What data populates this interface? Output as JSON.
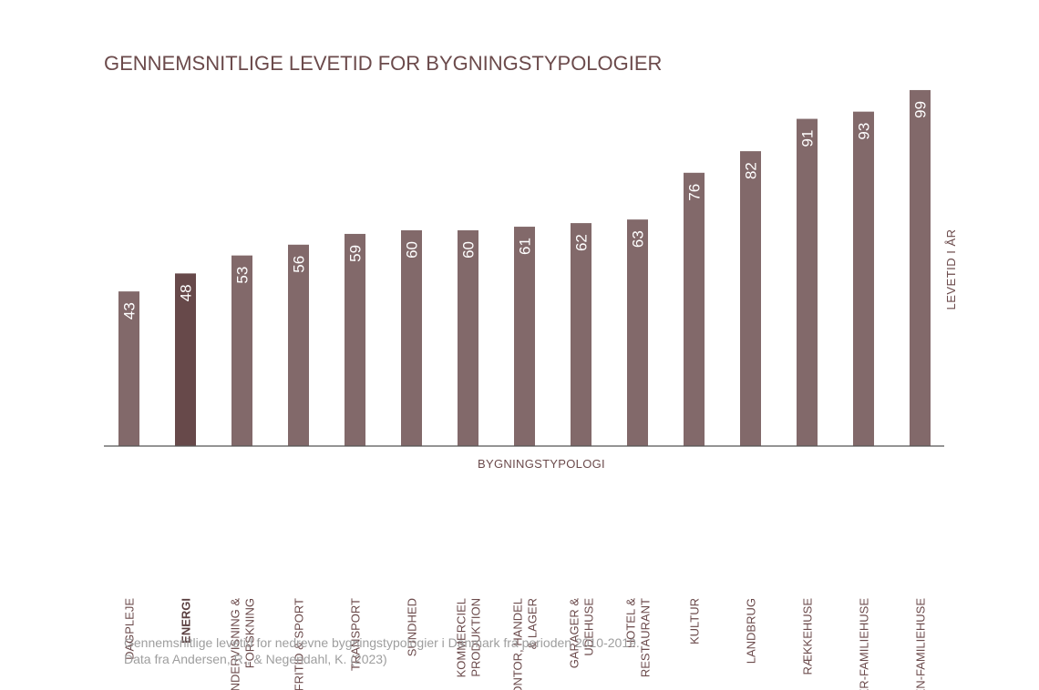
{
  "chart_data": {
    "type": "bar",
    "title": "GENNEMSNITLIGE LEVETID FOR BYGNINGSTYPOLOGIER",
    "xlabel": "BYGNINGSTYPOLOGI",
    "ylabel": "LEVETID I ÅR",
    "categories": [
      [
        "DAGPLEJE"
      ],
      [
        "ENERGI"
      ],
      [
        "UNDERVISNING &",
        "FORSKNING"
      ],
      [
        "FRITID & SPORT"
      ],
      [
        "TRANSPORT"
      ],
      [
        "SUNDHED"
      ],
      [
        "KOMMERCIEL",
        "PRODUKTION"
      ],
      [
        "KONTOR, HANDEL",
        "& LAGER"
      ],
      [
        "GARAGER &",
        "UDEHUSE"
      ],
      [
        "HOTEL &",
        "RESTAURANT"
      ],
      [
        "KULTUR"
      ],
      [
        "LANDBRUG"
      ],
      [
        "RÆKKEHUSE"
      ],
      [
        "FLER-FAMILIEHUSE"
      ],
      [
        "EN-FAMILIEHUSE"
      ]
    ],
    "values": [
      43,
      48,
      53,
      56,
      59,
      60,
      60,
      61,
      62,
      63,
      76,
      82,
      91,
      93,
      99
    ],
    "highlight_index": 1,
    "ylim": [
      0,
      100
    ],
    "grid": false,
    "legend": "none",
    "colors": {
      "bar": "#82696a",
      "highlight": "#67494a"
    }
  },
  "footnote": [
    "Gennemsnitlige levetid for nedrevne bygningstypologier i Danmark fra perioden 2010-2019.",
    "Data fra Andersen, R., & Negendahl, K. (2023)"
  ]
}
